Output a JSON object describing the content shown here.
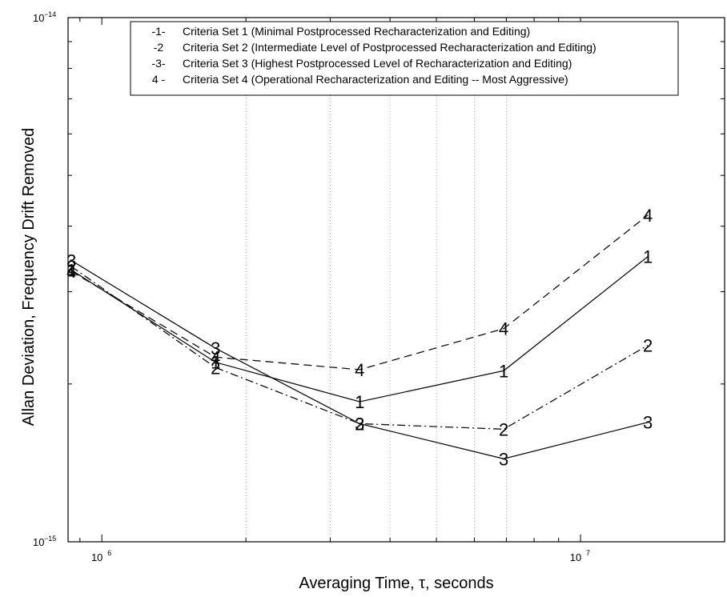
{
  "chart_data": {
    "type": "line",
    "xlabel": "Averaging Time, τ, seconds",
    "ylabel": "Allan Deviation, Frequency Drift Removed",
    "xscale": "log",
    "yscale": "log",
    "xlim": [
      850000,
      20000000
    ],
    "ylim": [
      1e-15,
      1e-14
    ],
    "grid": "vertical minor gridlines, dotted",
    "legend_position": "top-right",
    "x_ticks": [
      {
        "value": 1000000,
        "base": "10",
        "exp": "6"
      },
      {
        "value": 10000000,
        "base": "10",
        "exp": "7"
      }
    ],
    "y_ticks": [
      {
        "value": 1e-14,
        "base": "10",
        "exp": "−14"
      },
      {
        "value": 1e-15,
        "base": "10",
        "exp": "−15"
      }
    ],
    "series": [
      {
        "name": "Criteria Set 1 (Minimal Postprocessed Recharacterization and Editing)",
        "legend_marker": "-1-",
        "marker": "1",
        "dash": "solid",
        "points": [
          {
            "x": 864000,
            "y": 3.3e-15
          },
          {
            "x": 1728000,
            "y": 2.2e-15
          },
          {
            "x": 3456000,
            "y": 1.85e-15
          },
          {
            "x": 6912000,
            "y": 2.12e-15
          },
          {
            "x": 13824000,
            "y": 3.5e-15
          }
        ]
      },
      {
        "name": "Criteria Set 2 (Intermediate Level of Postprocessed Recharacterization and Editing)",
        "legend_marker": "-2",
        "marker": "2",
        "dash": "dashdot",
        "points": [
          {
            "x": 864000,
            "y": 3.35e-15
          },
          {
            "x": 1728000,
            "y": 2.15e-15
          },
          {
            "x": 3456000,
            "y": 1.68e-15
          },
          {
            "x": 6912000,
            "y": 1.64e-15
          },
          {
            "x": 13824000,
            "y": 2.37e-15
          }
        ]
      },
      {
        "name": "Criteria Set 3 (Highest Postprocessed Level of Recharacterization and Editing)",
        "legend_marker": "-3-",
        "marker": "3",
        "dash": "solid",
        "points": [
          {
            "x": 864000,
            "y": 3.44e-15
          },
          {
            "x": 1728000,
            "y": 2.34e-15
          },
          {
            "x": 3456000,
            "y": 1.68e-15
          },
          {
            "x": 6912000,
            "y": 1.44e-15
          },
          {
            "x": 13824000,
            "y": 1.69e-15
          }
        ]
      },
      {
        "name": "Criteria Set 4 (Operational Recharacterization and Editing -- Most Aggressive)",
        "legend_marker": "4 -",
        "marker": "4",
        "dash": "dashed",
        "points": [
          {
            "x": 864000,
            "y": 3.28e-15
          },
          {
            "x": 1728000,
            "y": 2.25e-15
          },
          {
            "x": 3456000,
            "y": 2.13e-15
          },
          {
            "x": 6912000,
            "y": 2.55e-15
          },
          {
            "x": 13824000,
            "y": 4.2e-15
          }
        ]
      }
    ]
  }
}
